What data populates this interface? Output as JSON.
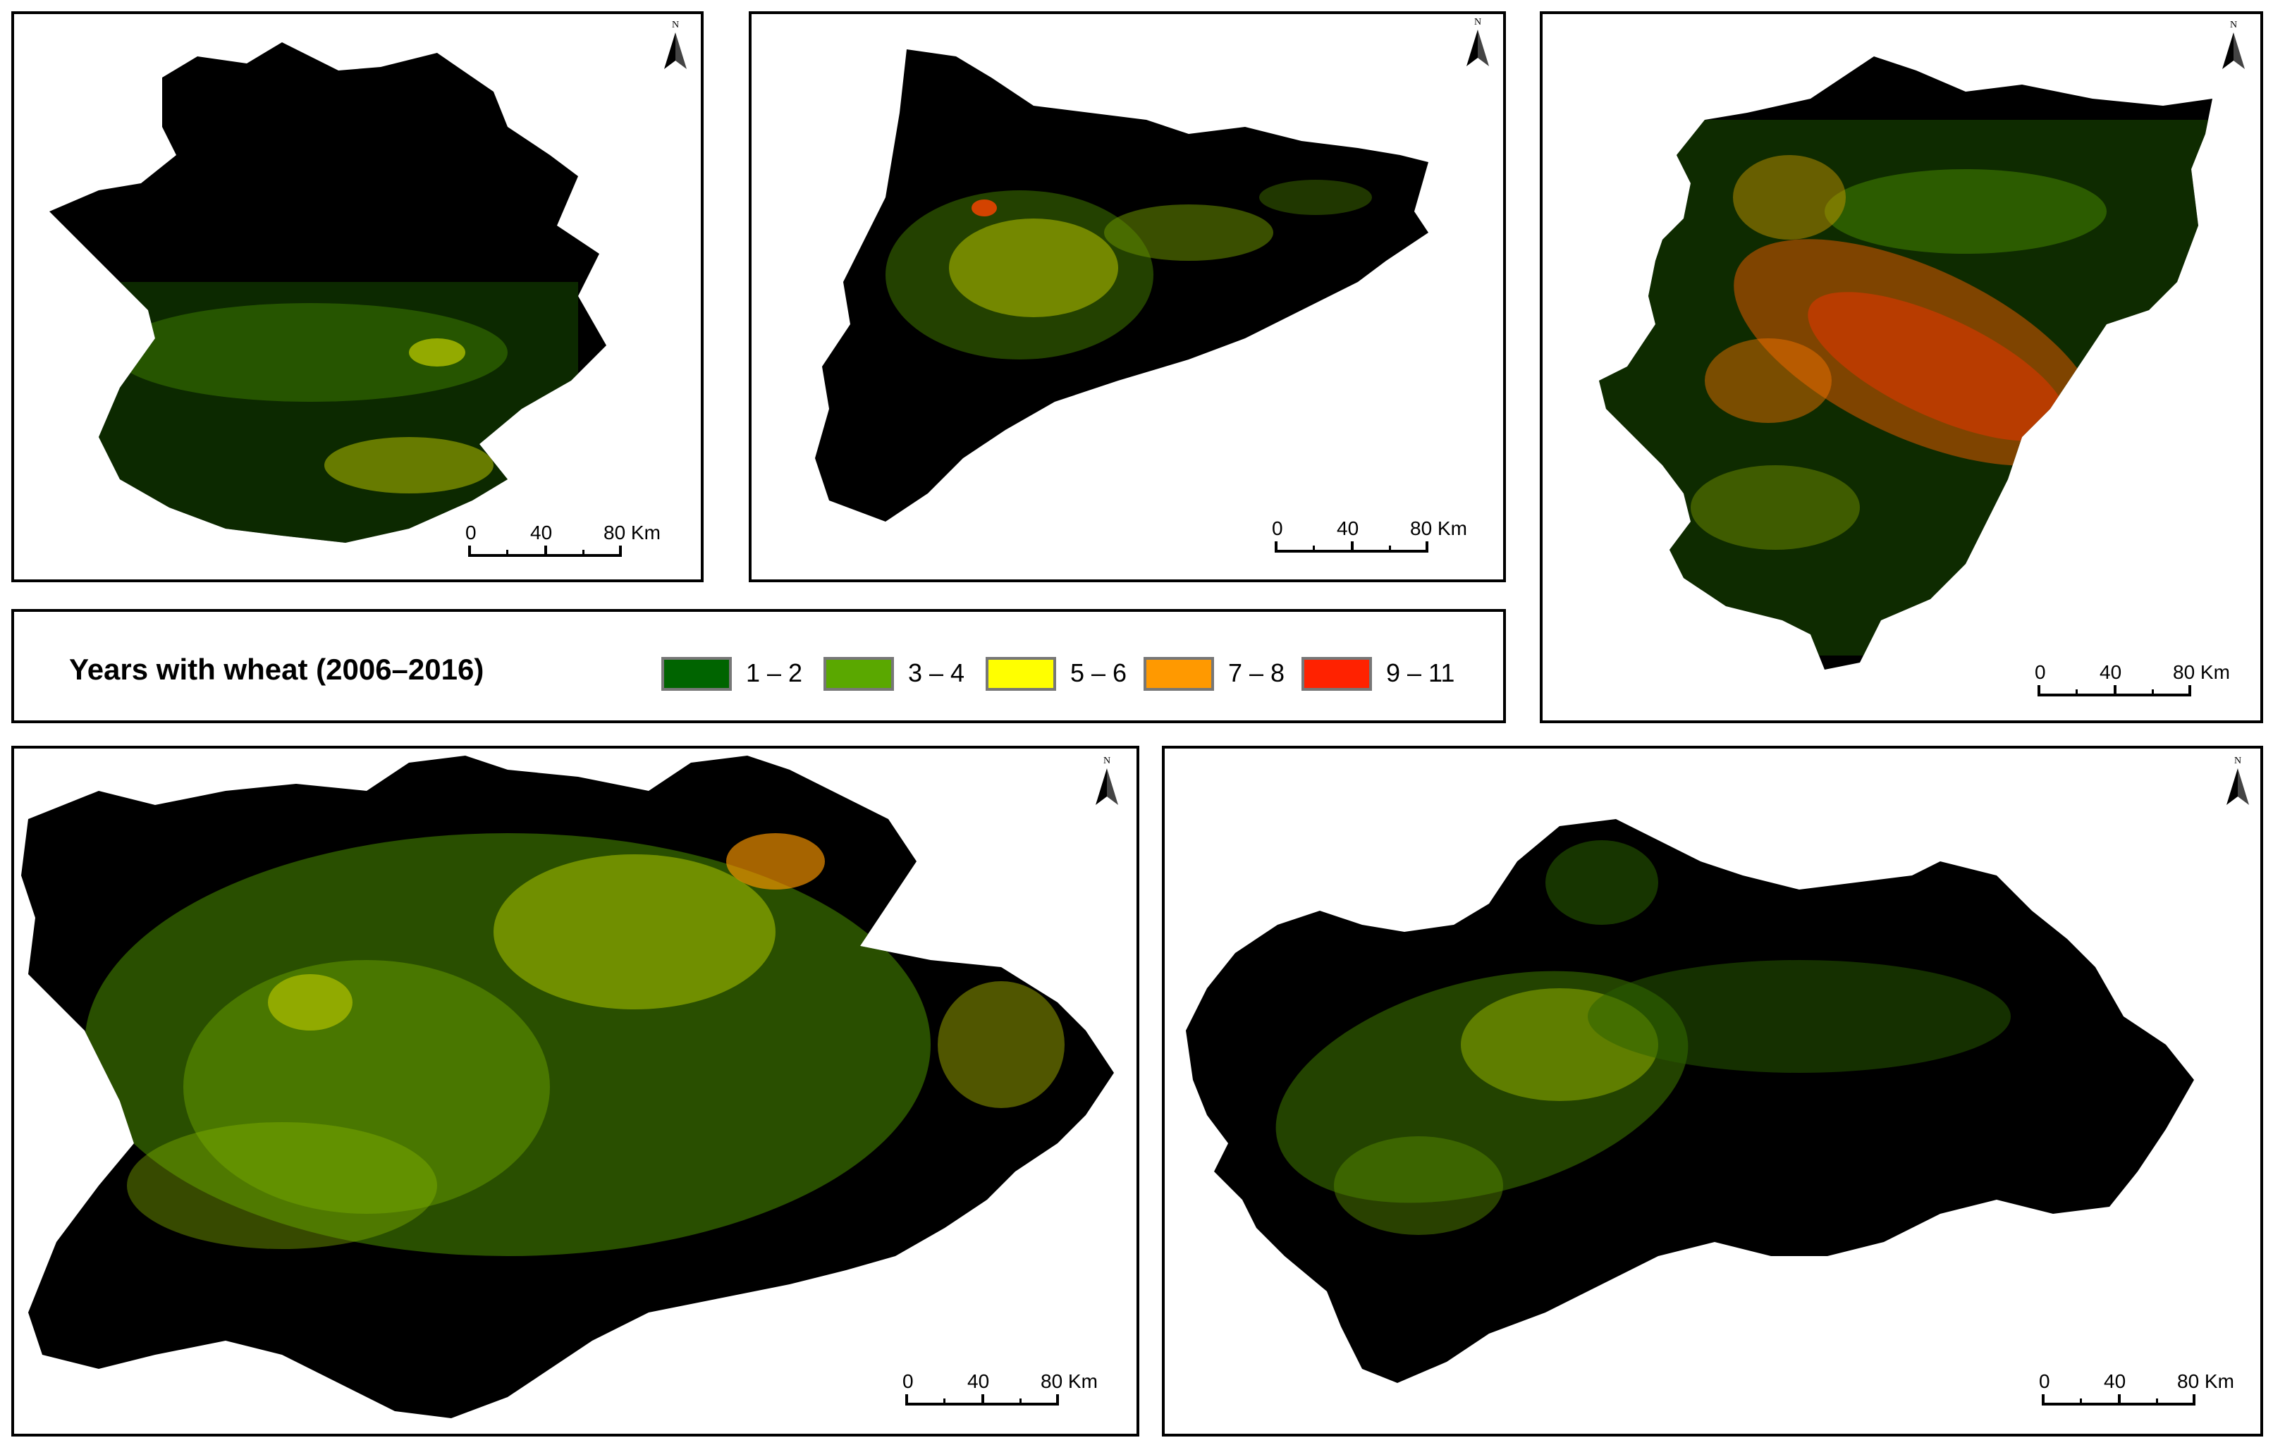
{
  "legend": {
    "title": "Years with wheat (2006–2016)",
    "classes": [
      {
        "label": "1 – 2",
        "color": "#006400"
      },
      {
        "label": "3 – 4",
        "color": "#5aa800"
      },
      {
        "label": "5 – 6",
        "color": "#ffff00"
      },
      {
        "label": "7 – 8",
        "color": "#ff9900"
      },
      {
        "label": "9 – 11",
        "color": "#ff2200"
      }
    ]
  },
  "north_arrow": {
    "letter": "N"
  },
  "scale_bar": {
    "label_0": "0",
    "label_40": "40",
    "label_80": "80 Km"
  },
  "maps": [
    {
      "id": "extremadura"
    },
    {
      "id": "catalonia"
    },
    {
      "id": "aragon"
    },
    {
      "id": "castilla-y-leon"
    },
    {
      "id": "andalusia"
    }
  ],
  "colors": {
    "background": "#000000",
    "frame": "#000000"
  }
}
